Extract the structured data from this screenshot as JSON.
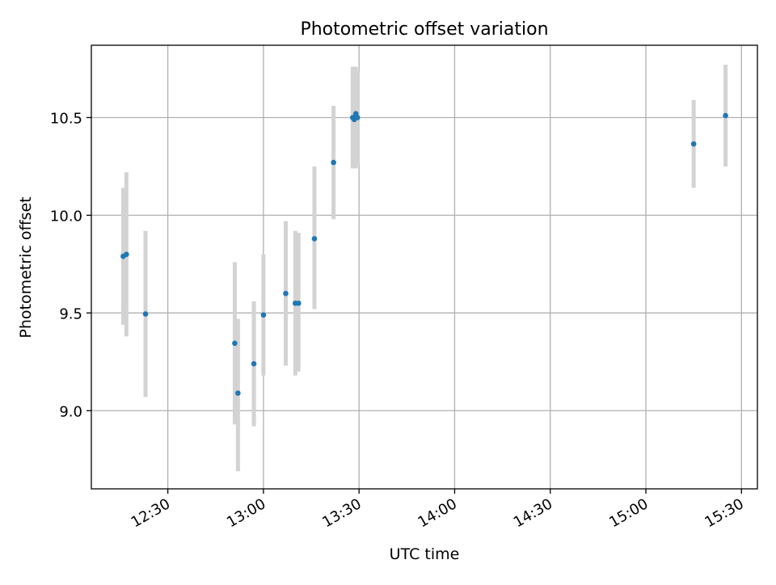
{
  "chart_data": {
    "type": "scatter",
    "title": "Photometric offset variation",
    "xlabel": "UTC time",
    "ylabel": "Photometric offset",
    "x_axis_type": "time",
    "xlim": [
      "12:06",
      "15:35"
    ],
    "ylim": [
      8.6,
      10.87
    ],
    "xticks": [
      "12:30",
      "13:00",
      "13:30",
      "14:00",
      "14:30",
      "15:00",
      "15:30"
    ],
    "yticks": [
      9.0,
      9.5,
      10.0,
      10.5
    ],
    "ytick_labels": [
      "9.0",
      "9.5",
      "10.0",
      "10.5"
    ],
    "grid": true,
    "legend": "none",
    "points": [
      {
        "x": "12:16",
        "y": 9.79,
        "err_low": 9.44,
        "err_high": 10.14
      },
      {
        "x": "12:17",
        "y": 9.8,
        "err_low": 9.38,
        "err_high": 10.22
      },
      {
        "x": "12:23",
        "y": 9.495,
        "err_low": 9.07,
        "err_high": 9.92
      },
      {
        "x": "12:51",
        "y": 9.345,
        "err_low": 8.93,
        "err_high": 9.76
      },
      {
        "x": "12:52",
        "y": 9.09,
        "err_low": 8.69,
        "err_high": 9.47
      },
      {
        "x": "12:57",
        "y": 9.24,
        "err_low": 8.92,
        "err_high": 9.56
      },
      {
        "x": "13:00",
        "y": 9.49,
        "err_low": 9.18,
        "err_high": 9.8
      },
      {
        "x": "13:07",
        "y": 9.6,
        "err_low": 9.23,
        "err_high": 9.97
      },
      {
        "x": "13:10",
        "y": 9.55,
        "err_low": 9.18,
        "err_high": 9.92
      },
      {
        "x": "13:11",
        "y": 9.55,
        "err_low": 9.2,
        "err_high": 9.91
      },
      {
        "x": "13:16",
        "y": 9.88,
        "err_low": 9.52,
        "err_high": 10.25
      },
      {
        "x": "13:22",
        "y": 10.27,
        "err_low": 9.98,
        "err_high": 10.56
      },
      {
        "x": "13:28",
        "y": 10.5,
        "err_low": 10.24,
        "err_high": 10.76
      },
      {
        "x": "13:28.5",
        "y": 10.49,
        "err_low": 10.25,
        "err_high": 10.75
      },
      {
        "x": "13:29",
        "y": 10.52,
        "err_low": 10.24,
        "err_high": 10.76
      },
      {
        "x": "13:29.5",
        "y": 10.5,
        "err_low": 10.26,
        "err_high": 10.73
      },
      {
        "x": "15:15",
        "y": 10.365,
        "err_low": 10.14,
        "err_high": 10.59
      },
      {
        "x": "15:25",
        "y": 10.51,
        "err_low": 10.25,
        "err_high": 10.77
      }
    ],
    "colors": {
      "marker": "#1f77b4",
      "errorbar": "#d3d3d3",
      "grid": "#b0b0b0"
    }
  }
}
